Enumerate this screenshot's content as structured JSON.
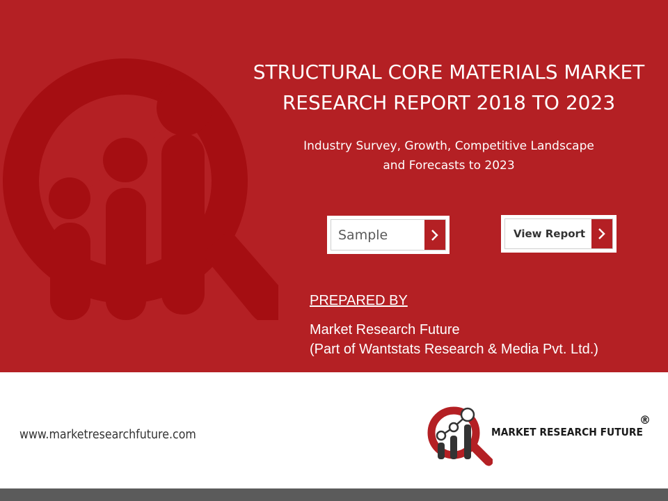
{
  "header": {
    "title_line1": "STRUCTURAL CORE MATERIALS MARKET",
    "title_line2": "RESEARCH REPORT 2018 TO 2023",
    "subtitle_line1": "Industry Survey, Growth, Competitive Landscape",
    "subtitle_line2": "and Forecasts to 2023"
  },
  "buttons": {
    "sample_label": "Sample",
    "view_report_label": "View Report"
  },
  "prepared": {
    "heading": "PREPARED BY",
    "company_line1": "Market Research Future",
    "company_line2": "(Part of Wantstats Research & Media Pvt. Ltd.)"
  },
  "footer": {
    "website": "www.marketresearchfuture.com",
    "brand": "MARKET RESEARCH FUTURE",
    "registered": "®"
  },
  "colors": {
    "primary_red": "#b42024",
    "dark_red": "#a50e12",
    "bar_gray": "#5b5b5b"
  },
  "icons": [
    "magnifier-chart-icon",
    "chevron-right-icon"
  ]
}
